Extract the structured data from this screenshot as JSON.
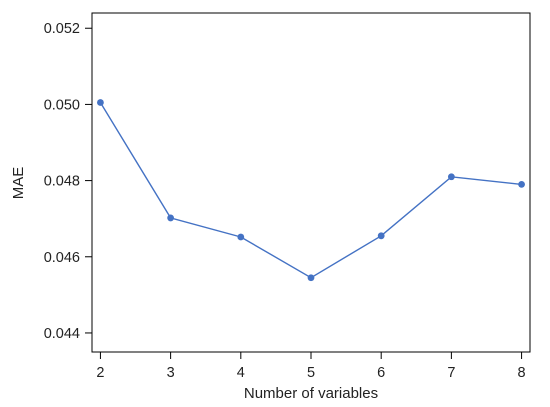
{
  "chart_data": {
    "type": "line",
    "title": "",
    "xlabel": "Number of variables",
    "ylabel": "MAE",
    "x": [
      2,
      3,
      4,
      5,
      6,
      7,
      8
    ],
    "series": [
      {
        "values": [
          0.05005,
          0.04702,
          0.04652,
          0.04545,
          0.04655,
          0.0481,
          0.0479
        ]
      }
    ],
    "xlim": [
      1.88,
      8.12
    ],
    "ylim": [
      0.0435,
      0.0524
    ],
    "x_ticks": [
      "2",
      "3",
      "4",
      "5",
      "6",
      "7",
      "8"
    ],
    "y_ticks": [
      "0.044",
      "0.046",
      "0.048",
      "0.050",
      "0.052"
    ],
    "grid": false,
    "legend": "none",
    "colors": {
      "series": "#4472c4",
      "axis": "#000000"
    }
  }
}
